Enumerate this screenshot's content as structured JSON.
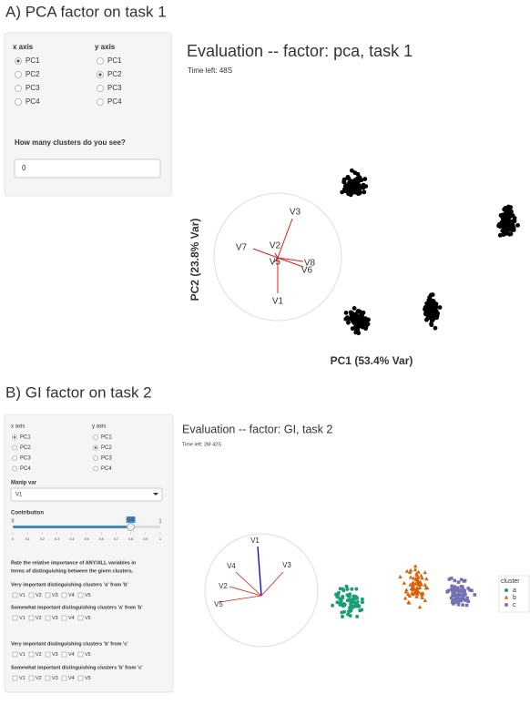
{
  "panel_a": {
    "heading": "A) PCA factor on task 1",
    "sidebar": {
      "x_label": "x axis",
      "y_label": "y axis",
      "options": [
        "PC1",
        "PC2",
        "PC3",
        "PC4"
      ],
      "x_selected": 0,
      "y_selected": 1,
      "question": "How many clusters do you see?",
      "input_value": "0"
    },
    "main": {
      "title": "Evaluation -- factor: pca, task 1",
      "time_left": "Time left: 48S",
      "x_axis_label": "PC1 (53.4% Var)",
      "y_axis_label": "PC2 (23.8% Var)",
      "vectors": [
        "V3",
        "V7",
        "V2",
        "V5",
        "V8",
        "V6",
        "V1"
      ],
      "vector_color": "#e41a1c",
      "point_color": "#000000"
    }
  },
  "panel_b": {
    "heading": "B) GI factor on task 2",
    "sidebar": {
      "x_label": "x axis",
      "y_label": "y axis",
      "options": [
        "PC1",
        "PC2",
        "PC3",
        "PC4"
      ],
      "x_selected": 0,
      "y_selected": 1,
      "manip_label": "Manip var",
      "manip_value": "V1",
      "contribution_label": "Contribution",
      "slider_min": "0",
      "slider_max": "1",
      "slider_value": 0.8,
      "slider_ticks": [
        "0",
        "0.1",
        "0.2",
        "0.3",
        "0.4",
        "0.5",
        "0.6",
        "0.7",
        "0.8",
        "0.9",
        "1"
      ],
      "instruction": [
        "Rate the relative importance of ANY/ALL variables in",
        "terms of distinguishing between the given clusters."
      ],
      "questions": [
        "Very important distinguishing clusters 'a' from 'b'",
        "Somewhat important distinguishing clusters 'a' from 'b'",
        "Very important distinguishing clusters 'b' from 'c'",
        "Somewhat important distinguishing clusters 'b' from 'c'"
      ],
      "checkbox_labels": [
        "V1",
        "V2",
        "V3",
        "V4",
        "V5"
      ]
    },
    "main": {
      "title": "Evaluation -- factor:  GI, task 2",
      "time_left": "Time left: 2M 42S",
      "vectors": [
        "V1",
        "V4",
        "V3",
        "V2",
        "V5"
      ],
      "manip_color": "#0000cc",
      "vector_color": "#e41a1c",
      "legend_title": "cluster",
      "clusters": [
        {
          "name": "a",
          "color": "#1b9e77",
          "shape": "circle"
        },
        {
          "name": "b",
          "color": "#d95f02",
          "shape": "triangle"
        },
        {
          "name": "c",
          "color": "#7570b3",
          "shape": "square"
        }
      ]
    }
  }
}
